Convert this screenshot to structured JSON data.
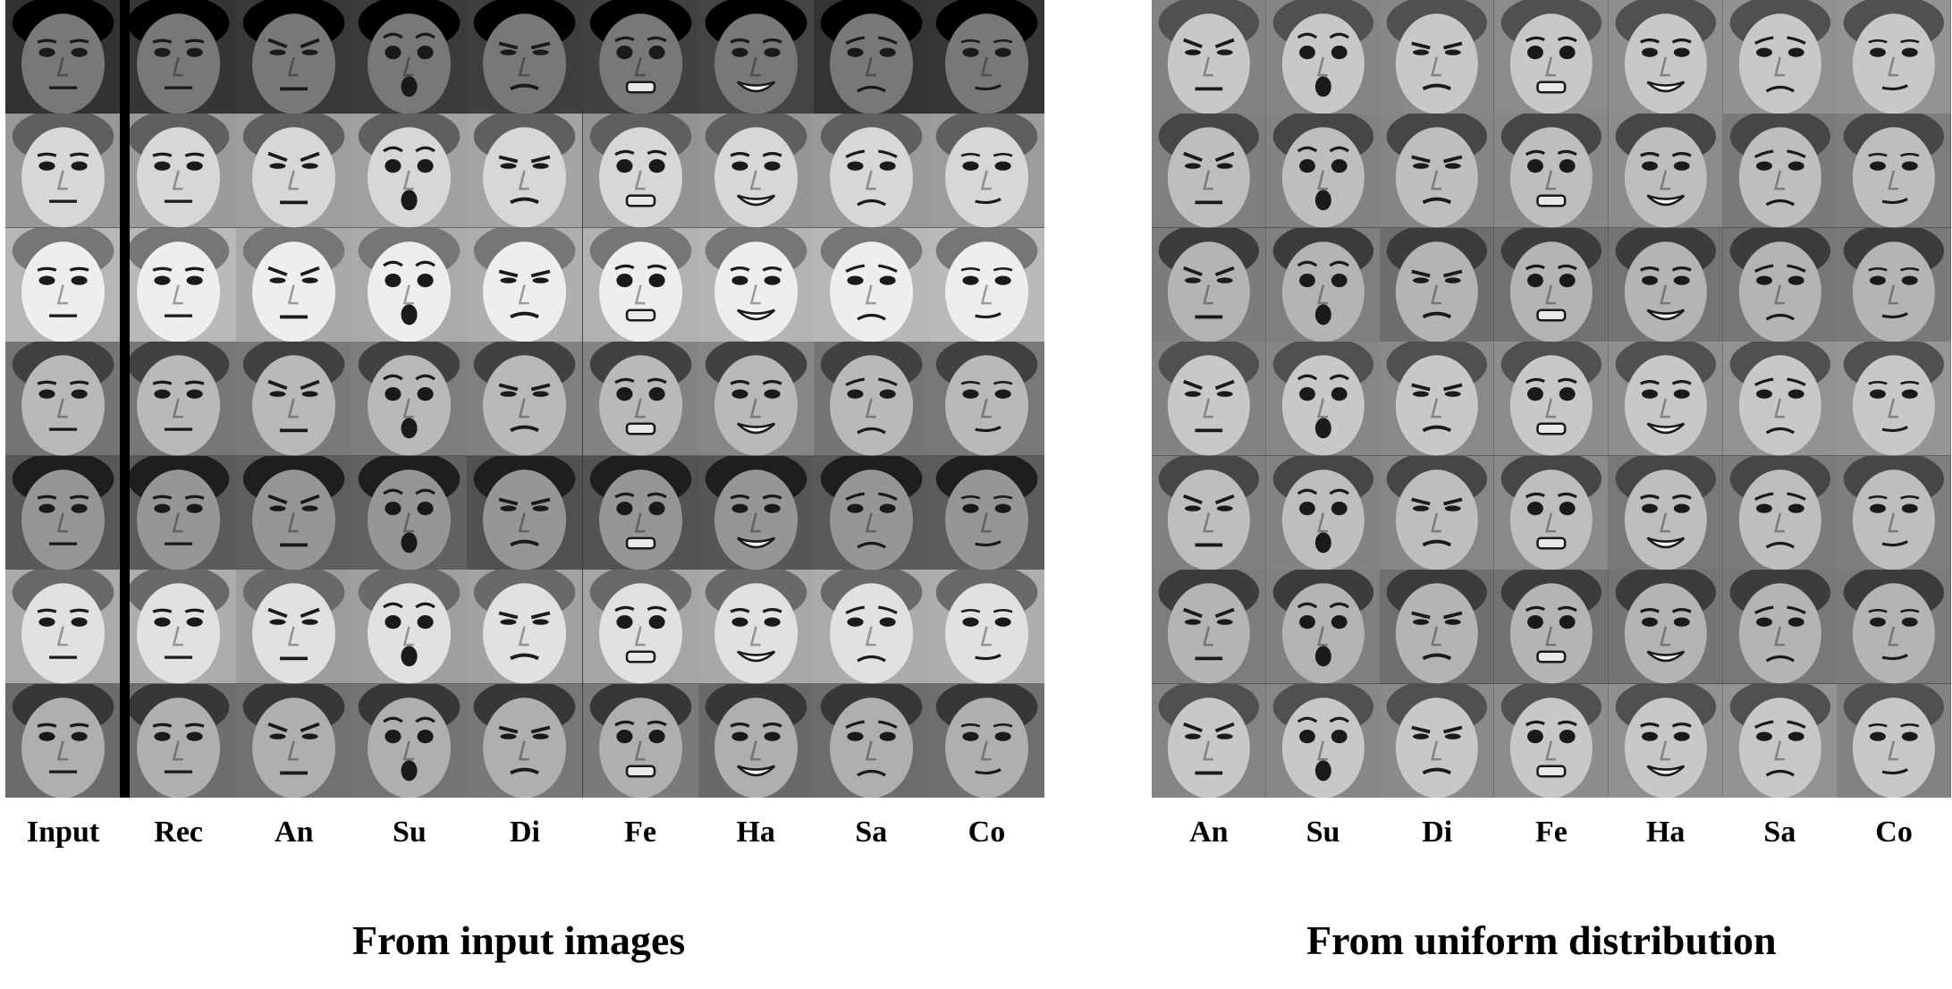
{
  "left_panel": {
    "columns": [
      "Input",
      "Rec",
      "An",
      "Su",
      "Di",
      "Fe",
      "Ha",
      "Sa",
      "Co"
    ],
    "row_count": 7,
    "caption": "From input images"
  },
  "right_panel": {
    "columns": [
      "An",
      "Su",
      "Di",
      "Fe",
      "Ha",
      "Sa",
      "Co"
    ],
    "row_count": 7,
    "caption": "From uniform distribution"
  }
}
